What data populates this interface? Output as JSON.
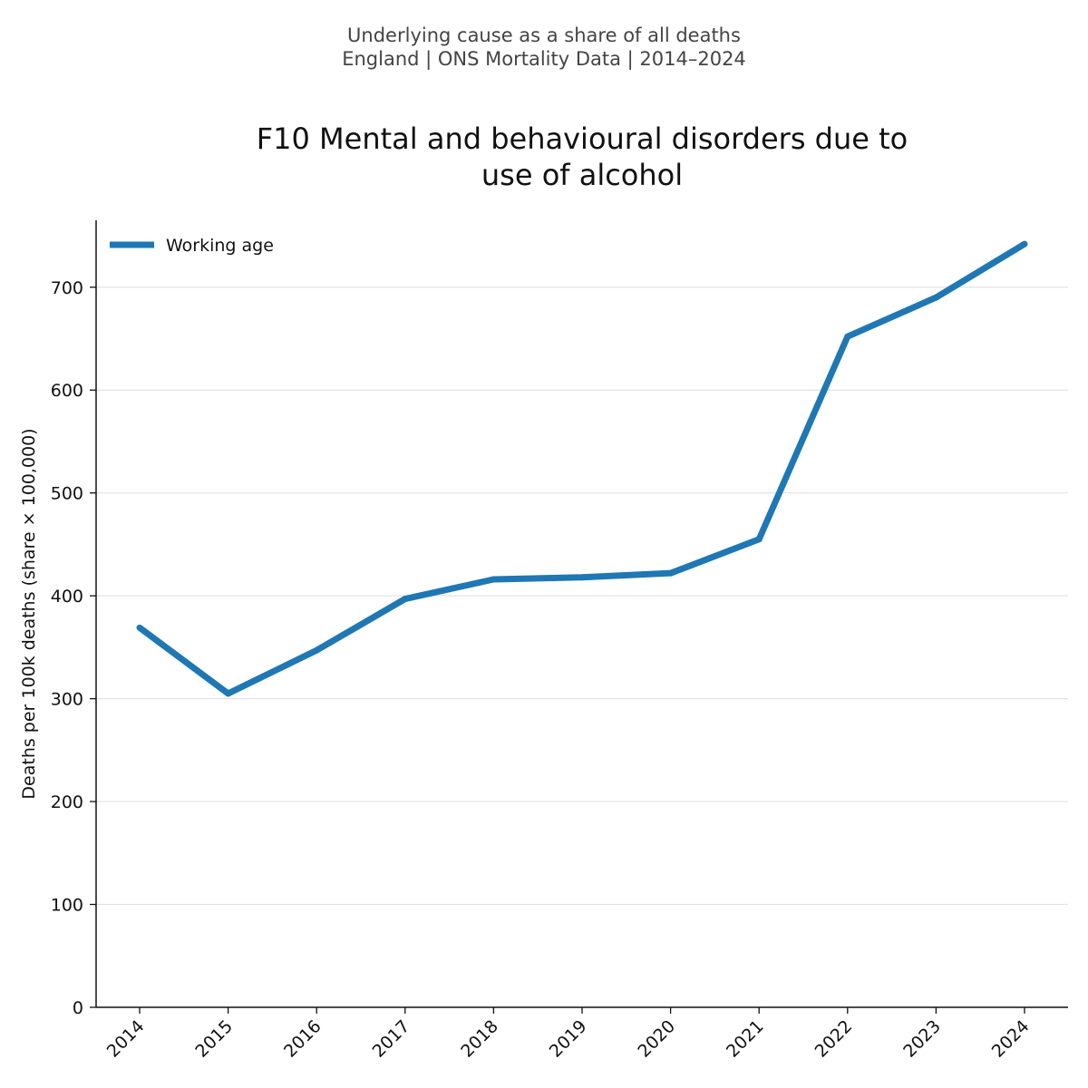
{
  "header": {
    "line1": "Underlying cause as a share of all deaths",
    "line2": "England | ONS Mortality Data | 2014–2024"
  },
  "chart_data": {
    "type": "line",
    "title_lines": [
      "F10 Mental and behavioural disorders due to",
      "use of alcohol"
    ],
    "xlabel": "",
    "ylabel": "Deaths per 100k deaths (share × 100,000)",
    "categories": [
      "2014",
      "2015",
      "2016",
      "2017",
      "2018",
      "2019",
      "2020",
      "2021",
      "2022",
      "2023",
      "2024"
    ],
    "series": [
      {
        "name": "Working age",
        "color": "#1f77b4",
        "values": [
          369,
          305,
          347,
          397,
          416,
          418,
          422,
          455,
          652,
          690,
          742
        ]
      }
    ],
    "ylim": [
      0,
      765
    ],
    "yticks": [
      0,
      100,
      200,
      300,
      400,
      500,
      600,
      700
    ],
    "grid": "horizontal",
    "legend_position": "top-left"
  }
}
